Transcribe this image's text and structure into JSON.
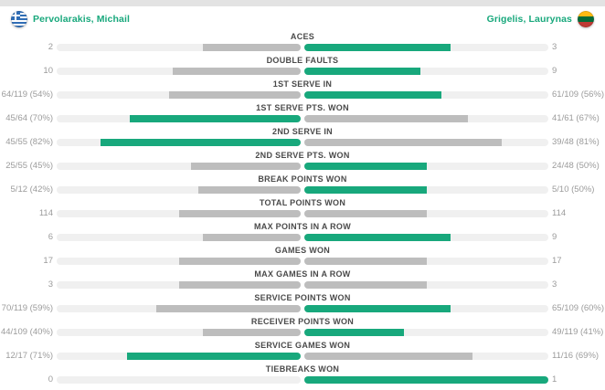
{
  "colors": {
    "green": "#18A87C",
    "gray": "#BDBDBD",
    "track": "#F0F0F0",
    "band": "#E3E3E3",
    "label_text": "#4A4A4A",
    "value_text": "#9B9B9B"
  },
  "players": {
    "left": {
      "name": "Pervolarakis, Michail",
      "flag_icon": "greece-flag-icon"
    },
    "right": {
      "name": "Grigelis, Laurynas",
      "flag_icon": "lithuania-flag-icon"
    }
  },
  "chart_data": {
    "type": "bar",
    "orientation": "horizontal-opposed",
    "title": "",
    "legend_position": "top",
    "categories": [
      "ACES",
      "DOUBLE FAULTS",
      "1ST SERVE IN",
      "1ST SERVE PTS. WON",
      "2ND SERVE IN",
      "2ND SERVE PTS. WON",
      "BREAK POINTS WON",
      "TOTAL POINTS WON",
      "MAX POINTS IN A ROW",
      "GAMES WON",
      "MAX GAMES IN A ROW",
      "SERVICE POINTS WON",
      "RECEIVER POINTS WON",
      "SERVICE GAMES WON",
      "TIEBREAKS WON"
    ],
    "series": [
      {
        "name": "Pervolarakis, Michail",
        "values": [
          "2",
          "10",
          "64/119 (54%)",
          "45/64 (70%)",
          "45/55 (82%)",
          "25/55 (45%)",
          "5/12 (42%)",
          "114",
          "6",
          "17",
          "3",
          "70/119 (59%)",
          "44/109 (40%)",
          "12/17 (71%)",
          "0"
        ],
        "fill_pct": [
          40,
          52.6,
          54,
          70,
          82,
          45,
          42,
          50,
          40,
          50,
          50,
          59,
          40,
          71,
          0
        ],
        "highlighted": [
          false,
          false,
          false,
          true,
          true,
          false,
          false,
          false,
          false,
          false,
          false,
          false,
          false,
          true,
          false
        ]
      },
      {
        "name": "Grigelis, Laurynas",
        "values": [
          "3",
          "9",
          "61/109 (56%)",
          "41/61 (67%)",
          "39/48 (81%)",
          "24/48 (50%)",
          "5/10 (50%)",
          "114",
          "9",
          "17",
          "3",
          "65/109 (60%)",
          "49/119 (41%)",
          "11/16 (69%)",
          "1"
        ],
        "fill_pct": [
          60,
          47.4,
          56,
          67,
          81,
          50,
          50,
          50,
          60,
          50,
          50,
          60,
          41,
          69,
          100
        ],
        "highlighted": [
          true,
          true,
          true,
          false,
          false,
          true,
          true,
          false,
          true,
          false,
          false,
          true,
          true,
          false,
          true
        ]
      }
    ]
  }
}
